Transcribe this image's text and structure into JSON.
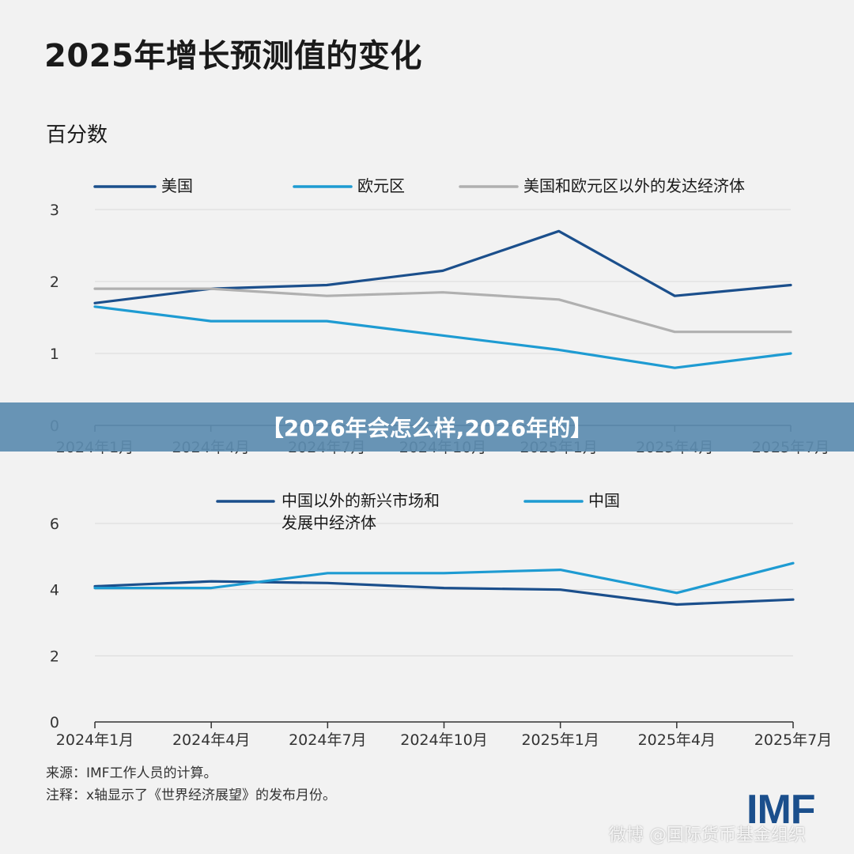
{
  "title": "2025年增长预测值的变化",
  "unit_label": "百分数",
  "banner": "【2026年会怎么样,2026年的】",
  "notes": {
    "source": "来源：IMF工作人员的计算。",
    "note": "注释：x轴显示了《世界经济展望》的发布月份。"
  },
  "logo": "IMF",
  "watermark": "微博 @国际货币基金组织",
  "colors": {
    "dark_blue": "#1b4f8c",
    "light_blue": "#1e9bd2",
    "gray": "#b0b0b0",
    "grid": "#d9d9d9",
    "axis": "#333333"
  },
  "chart_data": [
    {
      "type": "line",
      "categories": [
        "2024年1月",
        "2024年4月",
        "2024年7月",
        "2024年10月",
        "2025年1月",
        "2025年4月",
        "2025年7月"
      ],
      "ylim": [
        0,
        3
      ],
      "yticks": [
        "0",
        "1",
        "2",
        "3"
      ],
      "grid": true,
      "legend_position": "top",
      "series": [
        {
          "name": "美国",
          "color": "#1b4f8c",
          "values": [
            1.7,
            1.9,
            1.95,
            2.15,
            2.7,
            1.8,
            1.95
          ]
        },
        {
          "name": "欧元区",
          "color": "#1e9bd2",
          "values": [
            1.65,
            1.45,
            1.45,
            1.25,
            1.05,
            0.8,
            1.0
          ]
        },
        {
          "name": "美国和欧元区以外的发达经济体",
          "color": "#b0b0b0",
          "values": [
            1.9,
            1.9,
            1.8,
            1.85,
            1.75,
            1.3,
            1.3
          ]
        }
      ]
    },
    {
      "type": "line",
      "categories": [
        "2024年1月",
        "2024年4月",
        "2024年7月",
        "2024年10月",
        "2025年1月",
        "2025年4月",
        "2025年7月"
      ],
      "ylim": [
        0,
        6
      ],
      "yticks": [
        "0",
        "2",
        "4",
        "6"
      ],
      "grid": true,
      "legend_position": "top",
      "series": [
        {
          "name": "中国以外的新兴市场和发展中经济体",
          "name_lines": [
            "中国以外的新兴市场和",
            "发展中经济体"
          ],
          "color": "#1b4f8c",
          "values": [
            4.1,
            4.25,
            4.2,
            4.05,
            4.0,
            3.55,
            3.7
          ]
        },
        {
          "name": "中国",
          "color": "#1e9bd2",
          "values": [
            4.05,
            4.05,
            4.5,
            4.5,
            4.6,
            3.9,
            4.8
          ]
        }
      ]
    }
  ]
}
